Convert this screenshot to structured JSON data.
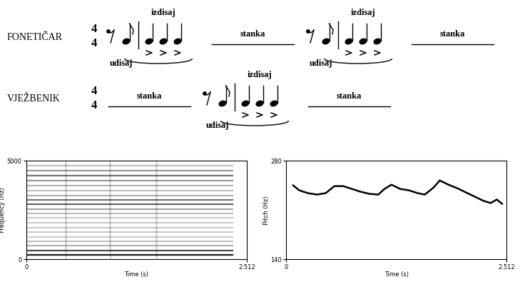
{
  "diagram": {
    "rows": [
      {
        "label": "FONETIČAR",
        "time_signature": {
          "top": 4,
          "bottom": 4
        },
        "items": [
          {
            "type": "phrase",
            "above": "izdisaj",
            "below": "udisaj"
          },
          {
            "type": "pause",
            "text": "stanka"
          },
          {
            "type": "phrase",
            "above": "izdisaj",
            "below": "udisaj"
          },
          {
            "type": "pause",
            "text": "stanka"
          }
        ]
      },
      {
        "label": "VJEŽBENIK",
        "time_signature": {
          "top": 4,
          "bottom": 4
        },
        "items": [
          {
            "type": "pause",
            "text": "stanka"
          },
          {
            "type": "phrase",
            "above": "izdisaj",
            "below": "udisaj"
          },
          {
            "type": "pause",
            "text": "stanka"
          }
        ]
      }
    ]
  },
  "chart_data": [
    {
      "type": "spectrogram",
      "xlabel": "Time (s)",
      "ylabel": "Frequency (Hz)",
      "xlim": [
        0,
        2.512
      ],
      "ylim": [
        0,
        5000
      ],
      "xticks": [
        0,
        2.512
      ],
      "yticks": [
        0,
        5000
      ],
      "color": "#000000",
      "x_end": 2.35,
      "bands": [
        {
          "frequency": 230,
          "intensity": 0.9
        },
        {
          "frequency": 460,
          "intensity": 0.7
        },
        {
          "frequency": 700,
          "intensity": 0.3
        },
        {
          "frequency": 930,
          "intensity": 0.25
        },
        {
          "frequency": 1150,
          "intensity": 0.2
        },
        {
          "frequency": 1400,
          "intensity": 0.2
        },
        {
          "frequency": 1620,
          "intensity": 0.2
        },
        {
          "frequency": 1850,
          "intensity": 0.2
        },
        {
          "frequency": 2100,
          "intensity": 0.2
        },
        {
          "frequency": 2330,
          "intensity": 0.25
        },
        {
          "frequency": 2560,
          "intensity": 0.35
        },
        {
          "frequency": 2800,
          "intensity": 0.6
        },
        {
          "frequency": 3000,
          "intensity": 0.55
        },
        {
          "frequency": 3250,
          "intensity": 0.3
        },
        {
          "frequency": 3500,
          "intensity": 0.25
        },
        {
          "frequency": 3750,
          "intensity": 0.3
        },
        {
          "frequency": 4000,
          "intensity": 0.4
        },
        {
          "frequency": 4250,
          "intensity": 0.55
        },
        {
          "frequency": 4500,
          "intensity": 0.4
        },
        {
          "frequency": 4750,
          "intensity": 0.25
        }
      ],
      "onsets": [
        0.45,
        0.95,
        1.48
      ]
    },
    {
      "type": "line",
      "xlabel": "Time (s)",
      "ylabel": "Pitch (Hz)",
      "xlim": [
        0,
        2.512
      ],
      "ylim": [
        140,
        280
      ],
      "xticks": [
        0,
        2.512
      ],
      "yticks": [
        140,
        280
      ],
      "color": "#000000",
      "x": [
        0.08,
        0.15,
        0.25,
        0.35,
        0.45,
        0.55,
        0.65,
        0.75,
        0.85,
        0.95,
        1.05,
        1.12,
        1.2,
        1.3,
        1.4,
        1.5,
        1.58,
        1.68,
        1.75,
        1.85,
        1.95,
        2.05,
        2.15,
        2.25,
        2.33,
        2.4,
        2.46
      ],
      "values": [
        245,
        238,
        234,
        232,
        234,
        244,
        244,
        240,
        236,
        233,
        232,
        240,
        246,
        240,
        238,
        234,
        232,
        242,
        252,
        246,
        241,
        235,
        229,
        223,
        220,
        225,
        219
      ]
    }
  ]
}
